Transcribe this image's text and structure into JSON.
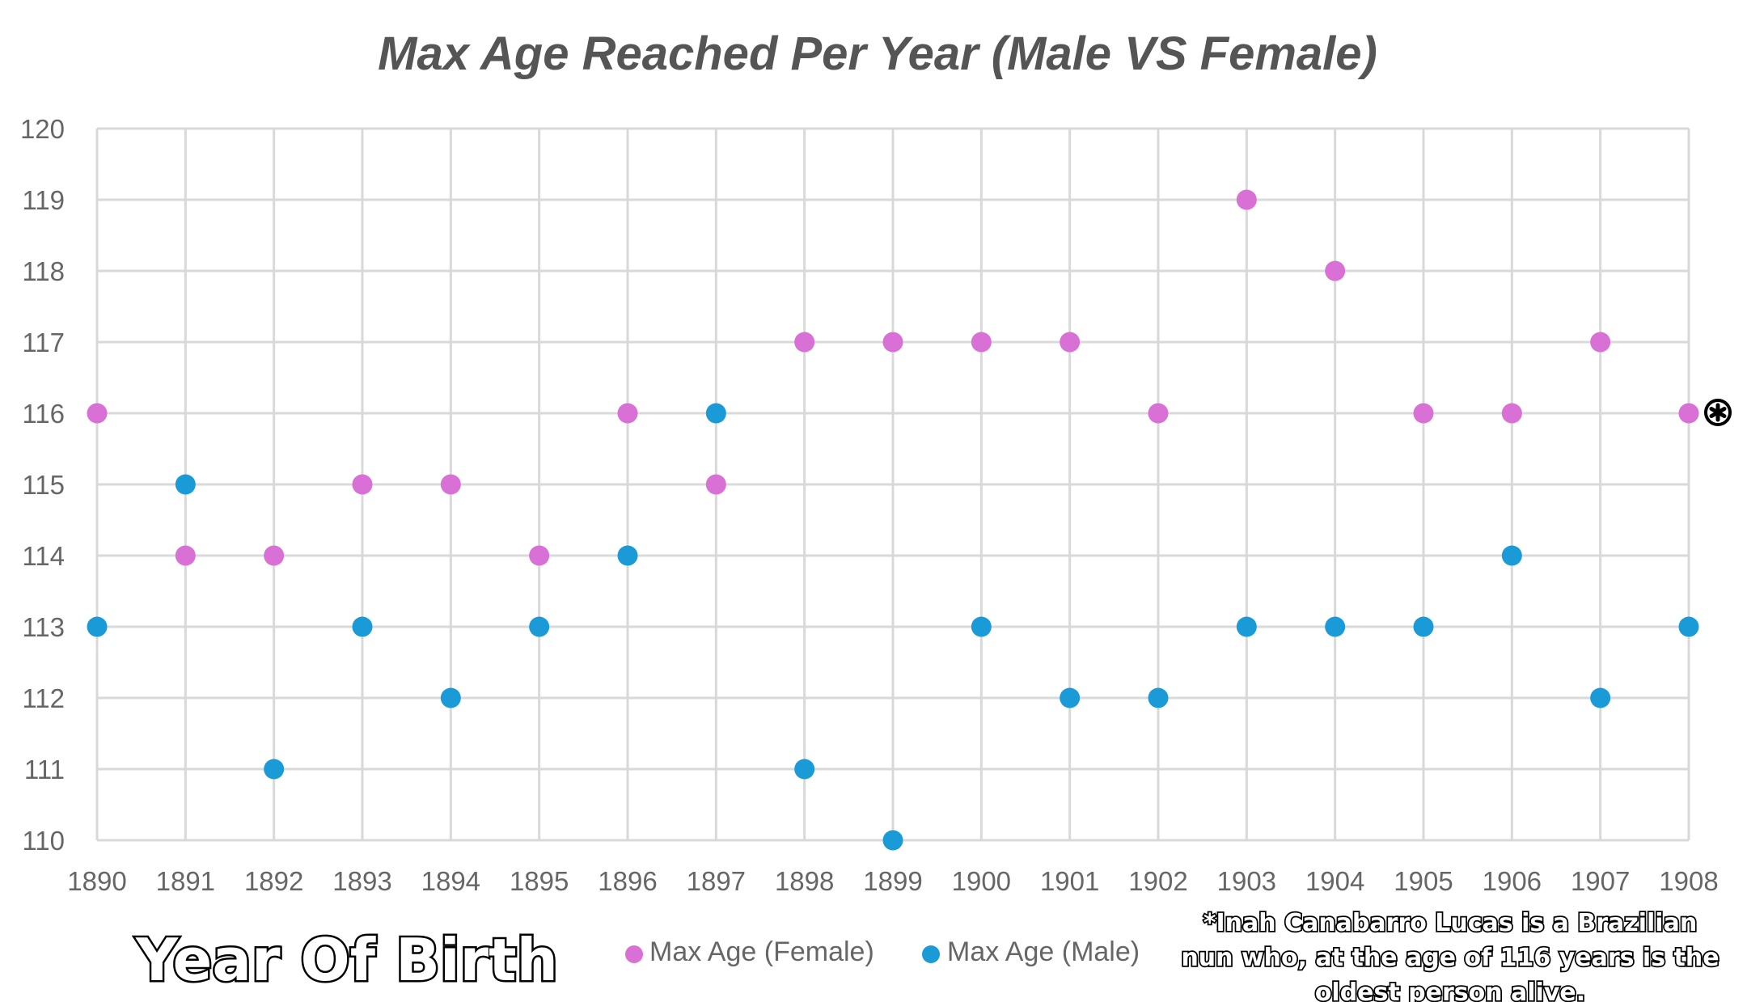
{
  "chart_data": {
    "type": "scatter",
    "title": "Max Age Reached Per Year (Male VS Female)",
    "xlabel": "Year Of Birth",
    "ylabel": "",
    "x": [
      1890,
      1891,
      1892,
      1893,
      1894,
      1895,
      1896,
      1897,
      1898,
      1899,
      1900,
      1901,
      1902,
      1903,
      1904,
      1905,
      1906,
      1907,
      1908
    ],
    "xlim": [
      1890,
      1908
    ],
    "ylim": [
      110,
      120
    ],
    "yticks": [
      110,
      111,
      112,
      113,
      114,
      115,
      116,
      117,
      118,
      119,
      120
    ],
    "grid": true,
    "legend_position": "bottom",
    "series": [
      {
        "name": "Max Age (Female)",
        "color": "#D970D5",
        "values": [
          116,
          114,
          114,
          115,
          115,
          114,
          116,
          115,
          117,
          117,
          117,
          117,
          116,
          119,
          118,
          116,
          116,
          117,
          116
        ]
      },
      {
        "name": "Max Age (Male)",
        "color": "#1A9BD7",
        "values": [
          113,
          115,
          111,
          113,
          112,
          113,
          114,
          116,
          111,
          110,
          113,
          112,
          112,
          113,
          113,
          113,
          114,
          112,
          113
        ]
      }
    ],
    "annotation": {
      "marker_icon": "asterisk-icon",
      "marker_at": {
        "x": 1908,
        "y": 116
      },
      "lines": [
        "*Inah Canabarro Lucas is a Brazilian",
        "nun who, at the age of 116 years is the",
        "oldest person alive."
      ]
    }
  }
}
